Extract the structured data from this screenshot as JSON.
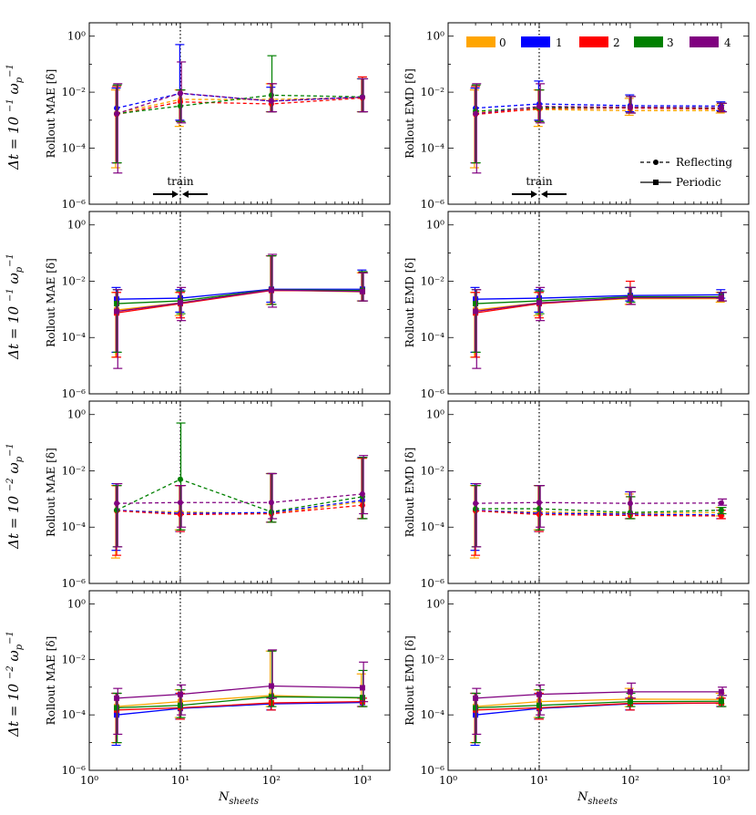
{
  "figure": {
    "x_label": "N_sheets",
    "x_label_sub": "sheets",
    "x_label_main": "N",
    "row_labels": [
      "Δt = 10⁻¹ ω_p⁻¹",
      "Δt = 10⁻¹ ω_p⁻¹",
      "Δt = 10⁻² ω_p⁻¹",
      "Δt = 10⁻² ω_p⁻¹"
    ],
    "row_label_main": [
      "Δt = 10",
      "Δt = 10",
      "Δt = 10",
      "Δt = 10"
    ],
    "row_label_exp": [
      "−1",
      "−1",
      "−2",
      "−2"
    ],
    "col_ylabels": [
      "Rollout MAE [δ]",
      "Rollout EMD [δ]"
    ],
    "x_tick_labels": [
      "10⁰",
      "10¹",
      "10²",
      "10³"
    ],
    "y_tick_labels": [
      "10⁰",
      "10⁻²",
      "10⁻⁴",
      "10⁻⁶"
    ],
    "train_label": "train",
    "legend_colors": [
      {
        "label": "0",
        "color": "#FFA500"
      },
      {
        "label": "1",
        "color": "#0000FF"
      },
      {
        "label": "2",
        "color": "#FF0000"
      },
      {
        "label": "3",
        "color": "#008000"
      },
      {
        "label": "4",
        "color": "#800080"
      }
    ],
    "legend_styles": [
      {
        "label": "Reflecting",
        "style": "dashed",
        "marker": "circle"
      },
      {
        "label": "Periodic",
        "style": "solid",
        "marker": "square"
      }
    ]
  },
  "chart_data": [
    {
      "panel": "row1-left",
      "type": "line",
      "ylabel": "Rollout MAE [δ]",
      "boundary": "Reflecting",
      "xscale": "log",
      "yscale": "log",
      "xlim": [
        1,
        2000
      ],
      "ylim": [
        1e-06,
        3
      ],
      "x": [
        2,
        10,
        100,
        1000
      ],
      "series": [
        {
          "name": "0",
          "values": [
            0.0018,
            0.0055,
            0.0055,
            0.0065
          ],
          "lo": [
            2e-05,
            0.0006,
            0.002,
            0.002
          ],
          "hi": [
            0.012,
            0.012,
            0.02,
            0.03
          ]
        },
        {
          "name": "1",
          "values": [
            0.0027,
            0.009,
            0.0048,
            0.0068
          ],
          "lo": [
            3e-05,
            0.001,
            0.002,
            0.002
          ],
          "hi": [
            0.014,
            0.5,
            0.015,
            0.03
          ]
        },
        {
          "name": "2",
          "values": [
            0.0016,
            0.0045,
            0.0038,
            0.0062
          ],
          "lo": [
            3e-05,
            0.0009,
            0.002,
            0.002
          ],
          "hi": [
            0.016,
            0.012,
            0.02,
            0.035
          ]
        },
        {
          "name": "3",
          "values": [
            0.0017,
            0.0032,
            0.0078,
            0.0068
          ],
          "lo": [
            3e-05,
            0.0009,
            0.002,
            0.002
          ],
          "hi": [
            0.018,
            0.012,
            0.2,
            0.03
          ]
        },
        {
          "name": "4",
          "values": [
            0.0017,
            0.0092,
            0.0048,
            0.0066
          ],
          "lo": [
            1.3e-05,
            0.0008,
            0.002,
            0.002
          ],
          "hi": [
            0.02,
            0.12,
            0.02,
            0.03
          ]
        }
      ],
      "annotation": "train"
    },
    {
      "panel": "row1-right",
      "type": "line",
      "ylabel": "Rollout EMD [δ]",
      "boundary": "Reflecting",
      "xscale": "log",
      "yscale": "log",
      "xlim": [
        1,
        2000
      ],
      "ylim": [
        1e-06,
        3
      ],
      "x": [
        2,
        10,
        100,
        1000
      ],
      "series": [
        {
          "name": "0",
          "values": [
            0.0019,
            0.0024,
            0.0022,
            0.0022
          ],
          "lo": [
            2e-05,
            0.0006,
            0.0015,
            0.0018
          ],
          "hi": [
            0.012,
            0.012,
            0.006,
            0.0035
          ]
        },
        {
          "name": "1",
          "values": [
            0.0027,
            0.0038,
            0.0033,
            0.0032
          ],
          "lo": [
            3e-05,
            0.001,
            0.002,
            0.0022
          ],
          "hi": [
            0.014,
            0.025,
            0.008,
            0.0045
          ]
        },
        {
          "name": "2",
          "values": [
            0.0016,
            0.0026,
            0.0027,
            0.0025
          ],
          "lo": [
            3e-05,
            0.0009,
            0.0018,
            0.002
          ],
          "hi": [
            0.016,
            0.012,
            0.007,
            0.004
          ]
        },
        {
          "name": "3",
          "values": [
            0.0021,
            0.0028,
            0.0029,
            0.0027
          ],
          "lo": [
            3e-05,
            0.0009,
            0.0018,
            0.002
          ],
          "hi": [
            0.018,
            0.012,
            0.007,
            0.004
          ]
        },
        {
          "name": "4",
          "values": [
            0.0017,
            0.0031,
            0.0029,
            0.0028
          ],
          "lo": [
            1.3e-05,
            0.0008,
            0.0018,
            0.002
          ],
          "hi": [
            0.02,
            0.02,
            0.007,
            0.004
          ]
        }
      ],
      "annotation": "train"
    },
    {
      "panel": "row2-left",
      "type": "line",
      "ylabel": "Rollout MAE [δ]",
      "boundary": "Periodic",
      "xscale": "log",
      "yscale": "log",
      "xlim": [
        1,
        2000
      ],
      "ylim": [
        1e-06,
        3
      ],
      "x": [
        2,
        10,
        100,
        1000
      ],
      "series": [
        {
          "name": "0",
          "values": [
            0.00095,
            0.0017,
            0.0048,
            0.0042
          ],
          "lo": [
            2e-05,
            0.0006,
            0.0015,
            0.002
          ],
          "hi": [
            0.004,
            0.004,
            0.08,
            0.02
          ]
        },
        {
          "name": "1",
          "values": [
            0.0023,
            0.0025,
            0.0052,
            0.0052
          ],
          "lo": [
            3e-05,
            0.0008,
            0.0018,
            0.002
          ],
          "hi": [
            0.006,
            0.005,
            0.08,
            0.025
          ]
        },
        {
          "name": "2",
          "values": [
            0.00075,
            0.0016,
            0.0047,
            0.0045
          ],
          "lo": [
            2e-05,
            0.0005,
            0.0015,
            0.002
          ],
          "hi": [
            0.004,
            0.004,
            0.08,
            0.02
          ]
        },
        {
          "name": "3",
          "values": [
            0.0016,
            0.002,
            0.005,
            0.0047
          ],
          "lo": [
            3e-05,
            0.0007,
            0.0015,
            0.002
          ],
          "hi": [
            0.005,
            0.0045,
            0.08,
            0.022
          ]
        },
        {
          "name": "4",
          "values": [
            0.00085,
            0.0017,
            0.0049,
            0.0043
          ],
          "lo": [
            8e-06,
            0.0004,
            0.0012,
            0.002
          ],
          "hi": [
            0.005,
            0.006,
            0.09,
            0.02
          ]
        }
      ]
    },
    {
      "panel": "row2-right",
      "type": "line",
      "ylabel": "Rollout EMD [δ]",
      "boundary": "Periodic",
      "xscale": "log",
      "yscale": "log",
      "xlim": [
        1,
        2000
      ],
      "ylim": [
        1e-06,
        3
      ],
      "x": [
        2,
        10,
        100,
        1000
      ],
      "series": [
        {
          "name": "0",
          "values": [
            0.00095,
            0.0017,
            0.0024,
            0.0024
          ],
          "lo": [
            2e-05,
            0.0006,
            0.0015,
            0.0018
          ],
          "hi": [
            0.004,
            0.004,
            0.006,
            0.004
          ]
        },
        {
          "name": "1",
          "values": [
            0.0023,
            0.0025,
            0.0031,
            0.0033
          ],
          "lo": [
            3e-05,
            0.0008,
            0.002,
            0.0025
          ],
          "hi": [
            0.006,
            0.005,
            0.006,
            0.005
          ]
        },
        {
          "name": "2",
          "values": [
            0.00075,
            0.0016,
            0.0026,
            0.0026
          ],
          "lo": [
            2e-05,
            0.0005,
            0.0015,
            0.002
          ],
          "hi": [
            0.004,
            0.004,
            0.01,
            0.004
          ]
        },
        {
          "name": "3",
          "values": [
            0.0016,
            0.002,
            0.0028,
            0.0028
          ],
          "lo": [
            3e-05,
            0.0007,
            0.0018,
            0.002
          ],
          "hi": [
            0.005,
            0.0045,
            0.006,
            0.004
          ]
        },
        {
          "name": "4",
          "values": [
            0.00085,
            0.0017,
            0.0026,
            0.0026
          ],
          "lo": [
            8e-06,
            0.0004,
            0.0015,
            0.002
          ],
          "hi": [
            0.005,
            0.006,
            0.006,
            0.004
          ]
        }
      ]
    },
    {
      "panel": "row3-left",
      "type": "line",
      "ylabel": "Rollout MAE [δ]",
      "boundary": "Reflecting",
      "xscale": "log",
      "yscale": "log",
      "xlim": [
        1,
        2000
      ],
      "ylim": [
        1e-06,
        3
      ],
      "x": [
        2,
        10,
        100,
        1000
      ],
      "series": [
        {
          "name": "0",
          "values": [
            0.00038,
            0.00035,
            0.0003,
            0.0008
          ],
          "lo": [
            8e-06,
            8e-05,
            0.00015,
            0.0002
          ],
          "hi": [
            0.003,
            0.003,
            0.008,
            0.028
          ]
        },
        {
          "name": "1",
          "values": [
            0.0004,
            0.00031,
            0.00033,
            0.0009
          ],
          "lo": [
            1.5e-05,
            7e-05,
            0.00015,
            0.0002
          ],
          "hi": [
            0.0035,
            0.003,
            0.008,
            0.03
          ]
        },
        {
          "name": "2",
          "values": [
            0.00038,
            0.00028,
            0.0003,
            0.0006
          ],
          "lo": [
            1e-05,
            7e-05,
            0.00015,
            0.0002
          ],
          "hi": [
            0.003,
            0.003,
            0.008,
            0.028
          ]
        },
        {
          "name": "3",
          "values": [
            0.0004,
            0.005,
            0.00035,
            0.0012
          ],
          "lo": [
            2e-05,
            8e-05,
            0.00015,
            0.0002
          ],
          "hi": [
            0.003,
            0.5,
            0.008,
            0.03
          ]
        },
        {
          "name": "4",
          "values": [
            0.0007,
            0.00075,
            0.00075,
            0.0015
          ],
          "lo": [
            2e-05,
            0.0001,
            0.0002,
            0.0003
          ],
          "hi": [
            0.0035,
            0.003,
            0.008,
            0.035
          ]
        }
      ]
    },
    {
      "panel": "row3-right",
      "type": "line",
      "ylabel": "Rollout EMD [δ]",
      "boundary": "Reflecting",
      "xscale": "log",
      "yscale": "log",
      "xlim": [
        1,
        2000
      ],
      "ylim": [
        1e-06,
        3
      ],
      "x": [
        2,
        10,
        100,
        1000
      ],
      "series": [
        {
          "name": "0",
          "values": [
            0.00038,
            0.00035,
            0.00031,
            0.00033
          ],
          "lo": [
            8e-06,
            8e-05,
            0.0002,
            0.00025
          ],
          "hi": [
            0.003,
            0.003,
            0.0015,
            0.0005
          ]
        },
        {
          "name": "1",
          "values": [
            0.0004,
            0.00031,
            0.00029,
            0.00027
          ],
          "lo": [
            1.5e-05,
            7e-05,
            0.0002,
            0.0002
          ],
          "hi": [
            0.0035,
            0.003,
            0.0018,
            0.0004
          ]
        },
        {
          "name": "2",
          "values": [
            0.00038,
            0.00028,
            0.00026,
            0.00025
          ],
          "lo": [
            1e-05,
            7e-05,
            0.0002,
            0.0002
          ],
          "hi": [
            0.003,
            0.003,
            0.0012,
            0.0004
          ]
        },
        {
          "name": "3",
          "values": [
            0.00045,
            0.00045,
            0.00033,
            0.0004
          ],
          "lo": [
            2e-05,
            8e-05,
            0.0002,
            0.0003
          ],
          "hi": [
            0.003,
            0.003,
            0.0012,
            0.0005
          ]
        },
        {
          "name": "4",
          "values": [
            0.0007,
            0.00075,
            0.0007,
            0.00072
          ],
          "lo": [
            2e-05,
            0.0001,
            0.0003,
            0.0006
          ],
          "hi": [
            0.0035,
            0.003,
            0.0018,
            0.001
          ]
        }
      ]
    },
    {
      "panel": "row4-left",
      "type": "line",
      "ylabel": "Rollout MAE [δ]",
      "boundary": "Periodic",
      "xscale": "log",
      "yscale": "log",
      "xlim": [
        1,
        2000
      ],
      "ylim": [
        1e-06,
        3
      ],
      "x": [
        2,
        10,
        100,
        1000
      ],
      "series": [
        {
          "name": "0",
          "values": [
            0.0002,
            0.0003,
            0.0005,
            0.0004
          ],
          "lo": [
            1e-05,
            8e-05,
            0.0002,
            0.0002
          ],
          "hi": [
            0.0006,
            0.0008,
            0.02,
            0.003
          ]
        },
        {
          "name": "1",
          "values": [
            0.0001,
            0.00017,
            0.00025,
            0.00028
          ],
          "lo": [
            8e-06,
            7e-05,
            0.00015,
            0.0002
          ],
          "hi": [
            0.0006,
            0.0006,
            0.0004,
            0.0004
          ]
        },
        {
          "name": "2",
          "values": [
            0.00015,
            0.00018,
            0.00027,
            0.0003
          ],
          "lo": [
            1e-05,
            7e-05,
            0.00015,
            0.0002
          ],
          "hi": [
            0.0006,
            0.0006,
            0.0004,
            0.0004
          ]
        },
        {
          "name": "3",
          "values": [
            0.00018,
            0.00022,
            0.00045,
            0.00042
          ],
          "lo": [
            1e-05,
            8e-05,
            0.0002,
            0.0002
          ],
          "hi": [
            0.0006,
            0.0008,
            0.02,
            0.004
          ]
        },
        {
          "name": "4",
          "values": [
            0.0004,
            0.00055,
            0.0011,
            0.00095
          ],
          "lo": [
            2e-05,
            0.0001,
            0.0004,
            0.0003
          ],
          "hi": [
            0.0009,
            0.0012,
            0.022,
            0.008
          ]
        }
      ]
    },
    {
      "panel": "row4-right",
      "type": "line",
      "ylabel": "Rollout EMD [δ]",
      "boundary": "Periodic",
      "xscale": "log",
      "yscale": "log",
      "xlim": [
        1,
        2000
      ],
      "ylim": [
        1e-06,
        3
      ],
      "x": [
        2,
        10,
        100,
        1000
      ],
      "series": [
        {
          "name": "0",
          "values": [
            0.0002,
            0.0003,
            0.00037,
            0.00036
          ],
          "lo": [
            1e-05,
            8e-05,
            0.0002,
            0.00025
          ],
          "hi": [
            0.0006,
            0.0008,
            0.0009,
            0.0006
          ]
        },
        {
          "name": "1",
          "values": [
            0.0001,
            0.00017,
            0.00025,
            0.00027
          ],
          "lo": [
            8e-06,
            7e-05,
            0.00015,
            0.0002
          ],
          "hi": [
            0.0006,
            0.0006,
            0.0004,
            0.0004
          ]
        },
        {
          "name": "2",
          "values": [
            0.00015,
            0.00018,
            0.00026,
            0.00027
          ],
          "lo": [
            1e-05,
            7e-05,
            0.00015,
            0.0002
          ],
          "hi": [
            0.0006,
            0.0006,
            0.0004,
            0.0004
          ]
        },
        {
          "name": "3",
          "values": [
            0.00018,
            0.00022,
            0.0003,
            0.00031
          ],
          "lo": [
            1e-05,
            8e-05,
            0.0002,
            0.0002
          ],
          "hi": [
            0.0006,
            0.0008,
            0.0006,
            0.0005
          ]
        },
        {
          "name": "4",
          "values": [
            0.0004,
            0.00055,
            0.00068,
            0.00068
          ],
          "lo": [
            2e-05,
            0.0001,
            0.0004,
            0.0005
          ],
          "hi": [
            0.0009,
            0.0012,
            0.0014,
            0.001
          ]
        }
      ]
    }
  ]
}
